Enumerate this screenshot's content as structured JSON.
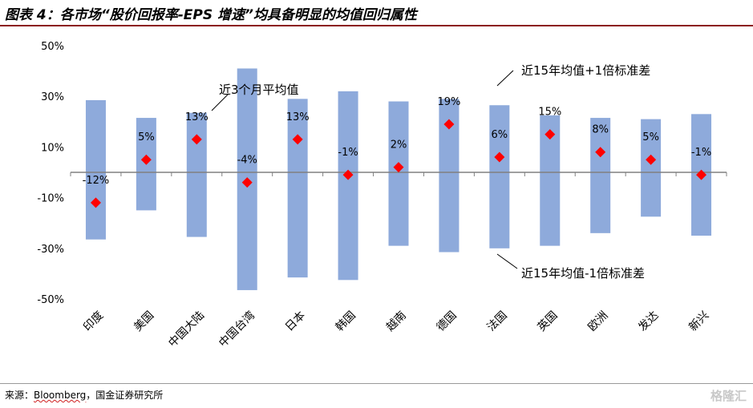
{
  "title": "图表 4：各市场“股价回报率-EPS 增速”均具备明显的均值回归属性",
  "source_label": "来源：",
  "source_brand": "Bloomberg",
  "source_rest": "，国金证券研究所",
  "watermark": "格隆汇",
  "colors": {
    "bar": "#8eaadb",
    "marker": "#ff0000",
    "axis": "#808080",
    "title_rule": "#8b1a1a"
  },
  "chart_data": {
    "type": "bar",
    "ylim": [
      -50,
      50
    ],
    "yticks": [
      "50%",
      "30%",
      "10%",
      "-10%",
      "-30%",
      "-50%"
    ],
    "ytick_values": [
      50,
      30,
      10,
      -10,
      -30,
      -50
    ],
    "categories": [
      "印度",
      "美国",
      "中国大陆",
      "中国台湾",
      "日本",
      "韩国",
      "越南",
      "德国",
      "法国",
      "英国",
      "欧洲",
      "发达",
      "新兴"
    ],
    "upper": [
      28.5,
      21.5,
      23.5,
      41,
      29,
      32,
      28,
      29,
      26.5,
      22.5,
      21.5,
      21,
      23
    ],
    "lower": [
      -26.5,
      -15,
      -25.5,
      -46.5,
      -41.5,
      -42.5,
      -29,
      -31.5,
      -30,
      -29,
      -24,
      -17.5,
      -25
    ],
    "current": [
      -12,
      5,
      13,
      -4,
      13,
      -1,
      2,
      19,
      6,
      15,
      8,
      5,
      -1
    ],
    "value_labels": [
      "-12%",
      "5%",
      "13%",
      "-4%",
      "13%",
      "-1%",
      "2%",
      "19%",
      "6%",
      "15%",
      "8%",
      "5%",
      "-1%"
    ],
    "annotations": [
      "近3个月平均值",
      "近15年均值+1倍标准差",
      "近15年均值-1倍标准差"
    ]
  }
}
